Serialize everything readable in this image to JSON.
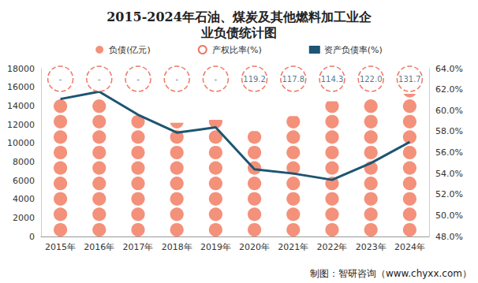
{
  "chart_data": {
    "type": "bar",
    "title": "2015-2024年石油、煤炭及其他燃料加工业企业负债统计图",
    "source": "制图：智研咨询（www.chyxx.com）",
    "categories": [
      "2015年",
      "2016年",
      "2017年",
      "2018年",
      "2019年",
      "2020年",
      "2021年",
      "2022年",
      "2023年",
      "2024年"
    ],
    "series": [
      {
        "name": "负债(亿元)",
        "type": "bar",
        "marker": "circle",
        "color": "#f4917b",
        "values": [
          14900,
          14900,
          13000,
          12200,
          12500,
          11300,
          12900,
          14500,
          14700,
          15300
        ]
      },
      {
        "name": "产权比率(%)",
        "type": "label",
        "marker": "circle",
        "line_style": "dashed",
        "color": "#e8563d",
        "data_labels": true,
        "values": [
          null,
          null,
          null,
          null,
          null,
          119.2,
          117.8,
          114.3,
          122.0,
          131.7
        ],
        "value_labels": [
          "-",
          "-",
          "-",
          "-",
          "-",
          "119.2",
          "117.8",
          "114.3",
          "122.0",
          "131.7"
        ]
      },
      {
        "name": "资产负债率(%)",
        "type": "line",
        "axis": "y2",
        "color": "#1d5572",
        "values": [
          61.1,
          61.8,
          59.6,
          57.9,
          58.4,
          54.4,
          54.0,
          53.4,
          55.0,
          57.0
        ]
      }
    ],
    "ylim": [
      0,
      18000
    ],
    "yticks": [
      0,
      2000,
      4000,
      6000,
      8000,
      10000,
      12000,
      14000,
      16000,
      18000
    ],
    "y2lim": [
      48,
      64
    ],
    "y2ticks": [
      {
        "value": 48,
        "label": "48.0%"
      },
      {
        "value": 50,
        "label": "50.0%"
      },
      {
        "value": 52,
        "label": "52.0%"
      },
      {
        "value": 54,
        "label": "54.0%"
      },
      {
        "value": 56,
        "label": "56.0%"
      },
      {
        "value": 58,
        "label": "58.0%"
      },
      {
        "value": 60,
        "label": "60.0%"
      },
      {
        "value": 62,
        "label": "62.0%"
      },
      {
        "value": 64,
        "label": "64.0%"
      }
    ],
    "legend": "top",
    "grid": false
  }
}
